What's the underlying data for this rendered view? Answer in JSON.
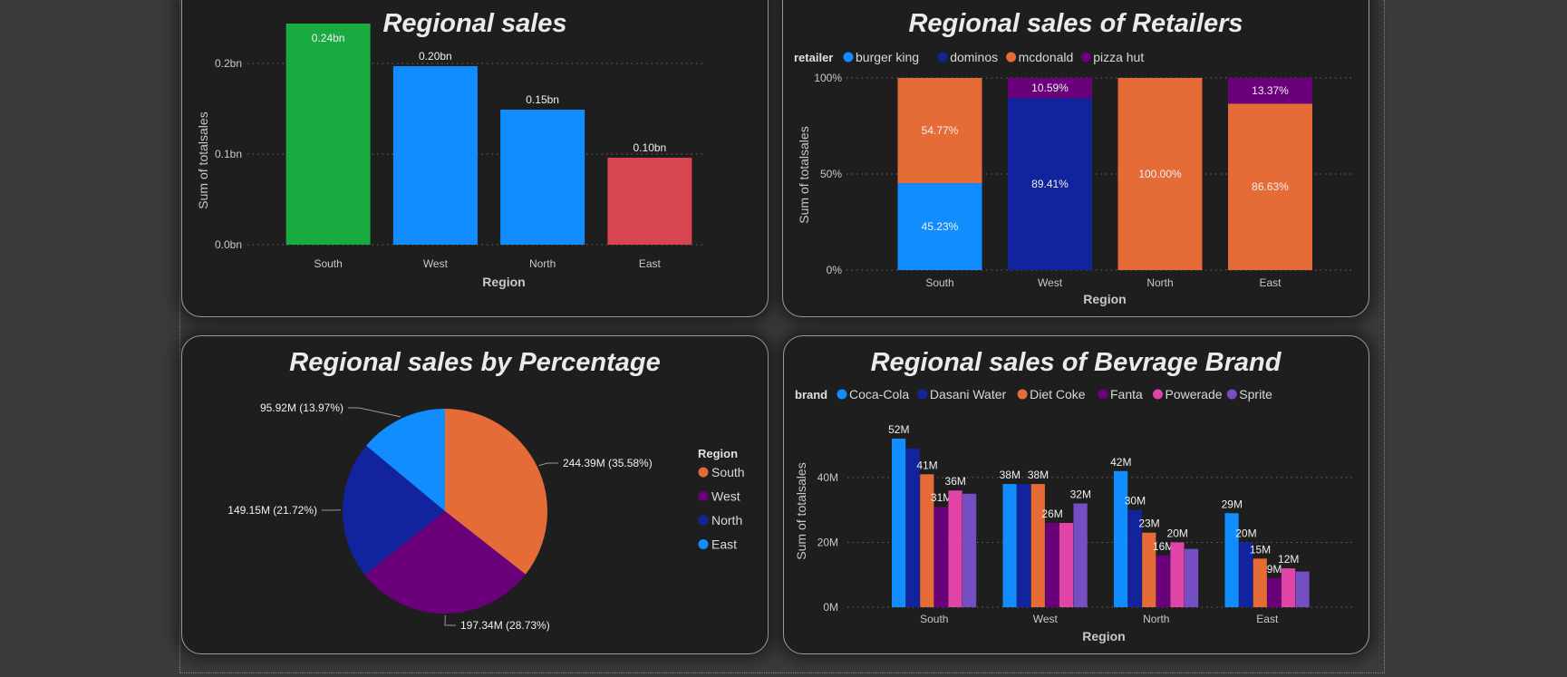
{
  "colors": {
    "page_bg": "#3b3b3b",
    "card_bg": "#1e1e1e",
    "blue": "#118dff",
    "navy": "#12239e",
    "orange": "#e66c37",
    "purple": "#6b007b",
    "pink": "#e044a7",
    "violet": "#744ec2",
    "green": "#1aab40",
    "red": "#d64550"
  },
  "chart_data": [
    {
      "id": "sales",
      "type": "bar",
      "title": "Regional sales",
      "xlabel": "Region",
      "ylabel": "Sum of totalsales",
      "categories": [
        "South",
        "West",
        "North",
        "East"
      ],
      "values": [
        0.244,
        0.197,
        0.149,
        0.096
      ],
      "labels": [
        "0.24bn",
        "0.20bn",
        "0.15bn",
        "0.10bn"
      ],
      "colors": [
        "#1aab40",
        "#118dff",
        "#118dff",
        "#d64550"
      ],
      "ylim": [
        0,
        0.245
      ],
      "yticks": [
        {
          "v": 0,
          "label": "0.0bn"
        },
        {
          "v": 0.1,
          "label": "0.1bn"
        },
        {
          "v": 0.2,
          "label": "0.2bn"
        }
      ],
      "grid": true
    },
    {
      "id": "retailers",
      "type": "bar",
      "stacked": "100%",
      "title": "Regional sales of Retailers",
      "xlabel": "Region",
      "ylabel": "Sum of totalsales",
      "legend_title": "retailer",
      "legend_position": "top-left",
      "categories": [
        "South",
        "West",
        "North",
        "East"
      ],
      "series": [
        {
          "name": "burger king",
          "color": "#118dff",
          "values": [
            45.23,
            0,
            0,
            0
          ],
          "labels": [
            "45.23%",
            "",
            "",
            ""
          ]
        },
        {
          "name": "dominos",
          "color": "#12239e",
          "values": [
            0,
            89.41,
            0,
            0
          ],
          "labels": [
            "",
            "89.41%",
            "",
            ""
          ]
        },
        {
          "name": "mcdonald",
          "color": "#e66c37",
          "values": [
            54.77,
            0,
            100.0,
            86.63
          ],
          "labels": [
            "54.77%",
            "",
            "100.00%",
            "86.63%"
          ]
        },
        {
          "name": "pizza hut",
          "color": "#6b007b",
          "values": [
            0,
            10.59,
            0,
            13.37
          ],
          "labels": [
            "",
            "10.59%",
            "",
            "13.37%"
          ]
        }
      ],
      "ylim": [
        0,
        100
      ],
      "yticks": [
        {
          "v": 0,
          "label": "0%"
        },
        {
          "v": 50,
          "label": "50%"
        },
        {
          "v": 100,
          "label": "100%"
        }
      ],
      "grid": true
    },
    {
      "id": "percent",
      "type": "pie",
      "title": "Regional sales by Percentage",
      "legend_title": "Region",
      "legend_position": "right",
      "slices": [
        {
          "name": "South",
          "value": 244.39,
          "color": "#e66c37",
          "label": "244.39M (35.58%)"
        },
        {
          "name": "West",
          "value": 197.34,
          "color": "#6b007b",
          "label": "197.34M (28.73%)"
        },
        {
          "name": "North",
          "value": 149.15,
          "color": "#12239e",
          "label": "149.15M (21.72%)"
        },
        {
          "name": "East",
          "value": 95.92,
          "color": "#118dff",
          "label": "95.92M (13.97%)"
        }
      ]
    },
    {
      "id": "brands",
      "type": "bar",
      "title": "Regional sales of Bevrage Brand",
      "xlabel": "Region",
      "ylabel": "Sum of totalsales",
      "legend_title": "brand",
      "legend_position": "top-left",
      "categories": [
        "South",
        "West",
        "North",
        "East"
      ],
      "series": [
        {
          "name": "Coca-Cola",
          "color": "#118dff",
          "values": [
            52,
            38,
            42,
            29
          ],
          "labels": [
            "52M",
            "38M",
            "42M",
            "29M"
          ]
        },
        {
          "name": "Dasani Water",
          "color": "#12239e",
          "values": [
            49,
            38,
            30,
            20
          ],
          "labels": [
            "",
            "",
            "30M",
            "20M"
          ]
        },
        {
          "name": "Diet Coke",
          "color": "#e66c37",
          "values": [
            41,
            38,
            23,
            15
          ],
          "labels": [
            "41M",
            "38M",
            "23M",
            "15M"
          ]
        },
        {
          "name": "Fanta",
          "color": "#6b007b",
          "values": [
            31,
            26,
            16,
            9
          ],
          "labels": [
            "31M",
            "26M",
            "16M",
            "9M"
          ]
        },
        {
          "name": "Powerade",
          "color": "#e044a7",
          "values": [
            36,
            26,
            20,
            12
          ],
          "labels": [
            "36M",
            "",
            "20M",
            "12M"
          ]
        },
        {
          "name": "Sprite",
          "color": "#744ec2",
          "values": [
            35,
            32,
            18,
            11
          ],
          "labels": [
            "",
            "32M",
            "",
            ""
          ]
        }
      ],
      "ylim": [
        0,
        52
      ],
      "yticks": [
        {
          "v": 0,
          "label": "0M"
        },
        {
          "v": 20,
          "label": "20M"
        },
        {
          "v": 40,
          "label": "40M"
        }
      ],
      "grid": true
    }
  ]
}
